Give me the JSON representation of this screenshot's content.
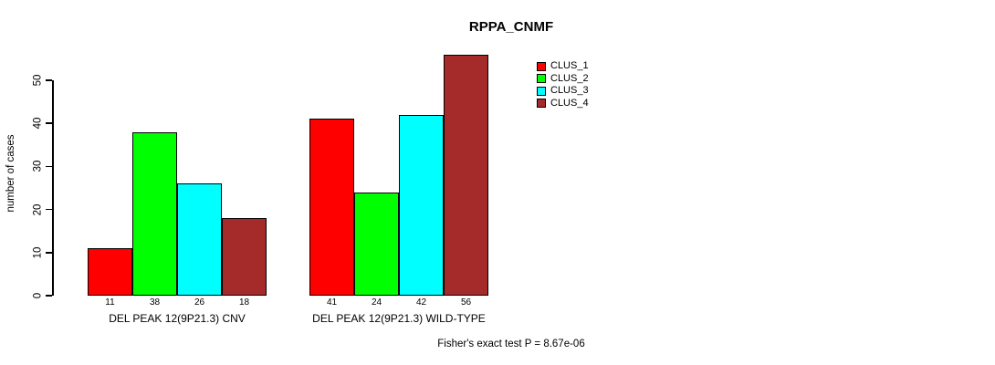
{
  "chart_data": {
    "type": "bar",
    "title": "RPPA_CNMF",
    "ylabel": "number of cases",
    "xlabel": "",
    "ylim": [
      0,
      56
    ],
    "yticks": [
      0,
      10,
      20,
      30,
      40,
      50
    ],
    "grid": false,
    "legend_position": "upper-right",
    "bar_value_labels_shown": true,
    "categories": [
      "DEL PEAK 12(9P21.3) CNV",
      "DEL PEAK 12(9P21.3) WILD-TYPE"
    ],
    "series": [
      {
        "name": "CLUS_1",
        "color": "#FF0000",
        "values": [
          11,
          41
        ]
      },
      {
        "name": "CLUS_2",
        "color": "#00FF00",
        "values": [
          38,
          24
        ]
      },
      {
        "name": "CLUS_3",
        "color": "#00FFFF",
        "values": [
          26,
          42
        ]
      },
      {
        "name": "CLUS_4",
        "color": "#A52A2A",
        "values": [
          18,
          56
        ]
      }
    ],
    "annotation": "Fisher's exact test P = 8.67e-06"
  }
}
